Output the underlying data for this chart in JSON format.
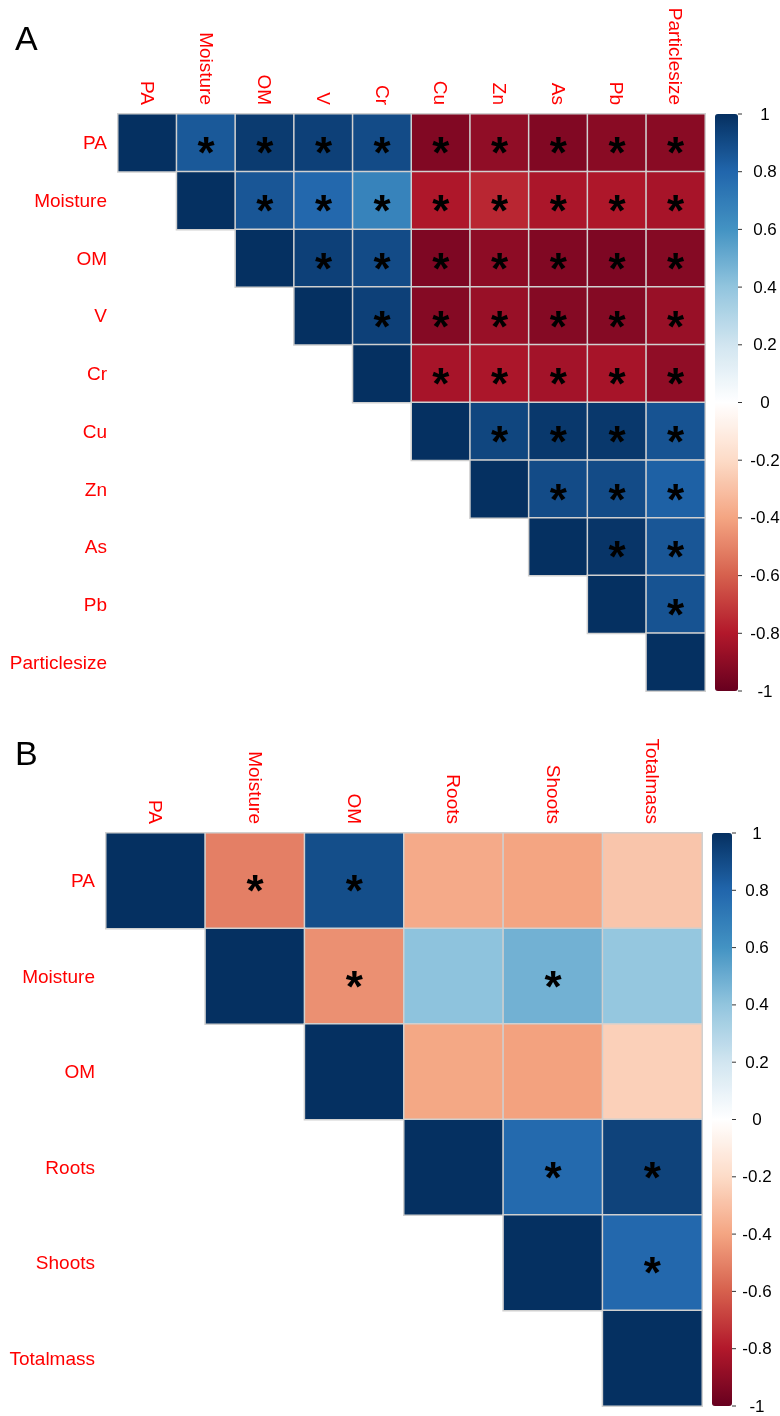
{
  "chart_data": [
    {
      "type": "heatmap",
      "title": "A",
      "categories": [
        "PA",
        "Moisture",
        "OM",
        "V",
        "Cr",
        "Cu",
        "Zn",
        "As",
        "Pb",
        "Particlesize"
      ],
      "y_categories": [
        "PA",
        "Moisture",
        "OM",
        "V",
        "Cr",
        "Cu",
        "Zn",
        "As",
        "Pb",
        "Particlesize"
      ],
      "cells": [
        [
          1,
          0.85,
          0.96,
          0.94,
          0.9,
          -0.93,
          -0.89,
          -0.93,
          -0.91,
          -0.91
        ],
        [
          null,
          1,
          0.86,
          0.79,
          0.67,
          -0.81,
          -0.76,
          -0.82,
          -0.81,
          -0.83
        ],
        [
          null,
          null,
          1,
          0.94,
          0.9,
          -0.94,
          -0.9,
          -0.93,
          -0.94,
          -0.92
        ],
        [
          null,
          null,
          null,
          1,
          0.94,
          -0.92,
          -0.87,
          -0.92,
          -0.92,
          -0.87
        ],
        [
          null,
          null,
          null,
          null,
          1,
          -0.83,
          -0.82,
          -0.84,
          -0.83,
          -0.89
        ],
        [
          null,
          null,
          null,
          null,
          null,
          1,
          0.92,
          0.97,
          0.97,
          0.87
        ],
        [
          null,
          null,
          null,
          null,
          null,
          null,
          1,
          0.9,
          0.9,
          0.82
        ],
        [
          null,
          null,
          null,
          null,
          null,
          null,
          null,
          1,
          0.98,
          0.86
        ],
        [
          null,
          null,
          null,
          null,
          null,
          null,
          null,
          null,
          1,
          0.87
        ],
        [
          null,
          null,
          null,
          null,
          null,
          null,
          null,
          null,
          null,
          1
        ]
      ],
      "cell_labels": [
        [
          null,
          "*",
          "*",
          "*",
          "*",
          "*",
          "*",
          "*",
          "*",
          "*"
        ],
        [
          null,
          null,
          "*",
          "*",
          "*",
          "*",
          "*",
          "*",
          "*",
          "*"
        ],
        [
          null,
          null,
          null,
          "*",
          "*",
          "*",
          "*",
          "*",
          "*",
          "*"
        ],
        [
          null,
          null,
          null,
          null,
          "*",
          "*",
          "*",
          "*",
          "*",
          "*"
        ],
        [
          null,
          null,
          null,
          null,
          null,
          "*",
          "*",
          "*",
          "*",
          "*"
        ],
        [
          null,
          null,
          null,
          null,
          null,
          null,
          "*",
          "*",
          "*",
          "*"
        ],
        [
          null,
          null,
          null,
          null,
          null,
          null,
          null,
          "*",
          "*",
          "*"
        ],
        [
          null,
          null,
          null,
          null,
          null,
          null,
          null,
          null,
          "*",
          "*"
        ],
        [
          null,
          null,
          null,
          null,
          null,
          null,
          null,
          null,
          null,
          "*"
        ],
        [
          null,
          null,
          null,
          null,
          null,
          null,
          null,
          null,
          null,
          null
        ]
      ],
      "clim": [
        -1,
        1
      ],
      "cticks": [
        -1,
        -0.8,
        -0.6,
        -0.4,
        -0.2,
        0,
        0.2,
        0.4,
        0.6,
        0.8,
        1
      ]
    },
    {
      "type": "heatmap",
      "title": "B",
      "categories": [
        "PA",
        "Moisture",
        "OM",
        "Roots",
        "Shoots",
        "Totalmass"
      ],
      "y_categories": [
        "PA",
        "Moisture",
        "OM",
        "Roots",
        "Shoots",
        "Totalmass"
      ],
      "cells": [
        [
          1,
          -0.51,
          0.89,
          -0.38,
          -0.4,
          -0.28
        ],
        [
          null,
          1,
          -0.46,
          0.41,
          0.48,
          0.39
        ],
        [
          null,
          null,
          1,
          -0.39,
          -0.41,
          -0.24
        ],
        [
          null,
          null,
          null,
          1,
          0.78,
          0.93
        ],
        [
          null,
          null,
          null,
          null,
          1,
          0.79
        ],
        [
          null,
          null,
          null,
          null,
          null,
          1
        ]
      ],
      "cell_labels": [
        [
          null,
          "*",
          "*",
          null,
          null,
          null
        ],
        [
          null,
          null,
          "*",
          null,
          "*",
          null
        ],
        [
          null,
          null,
          null,
          null,
          null,
          null
        ],
        [
          null,
          null,
          null,
          null,
          "*",
          "*"
        ],
        [
          null,
          null,
          null,
          null,
          null,
          "*"
        ],
        [
          null,
          null,
          null,
          null,
          null,
          null
        ]
      ],
      "clim": [
        -1,
        1
      ],
      "cticks": [
        -1,
        -0.8,
        -0.6,
        -0.4,
        -0.2,
        0,
        0.2,
        0.4,
        0.6,
        0.8,
        1
      ]
    }
  ]
}
